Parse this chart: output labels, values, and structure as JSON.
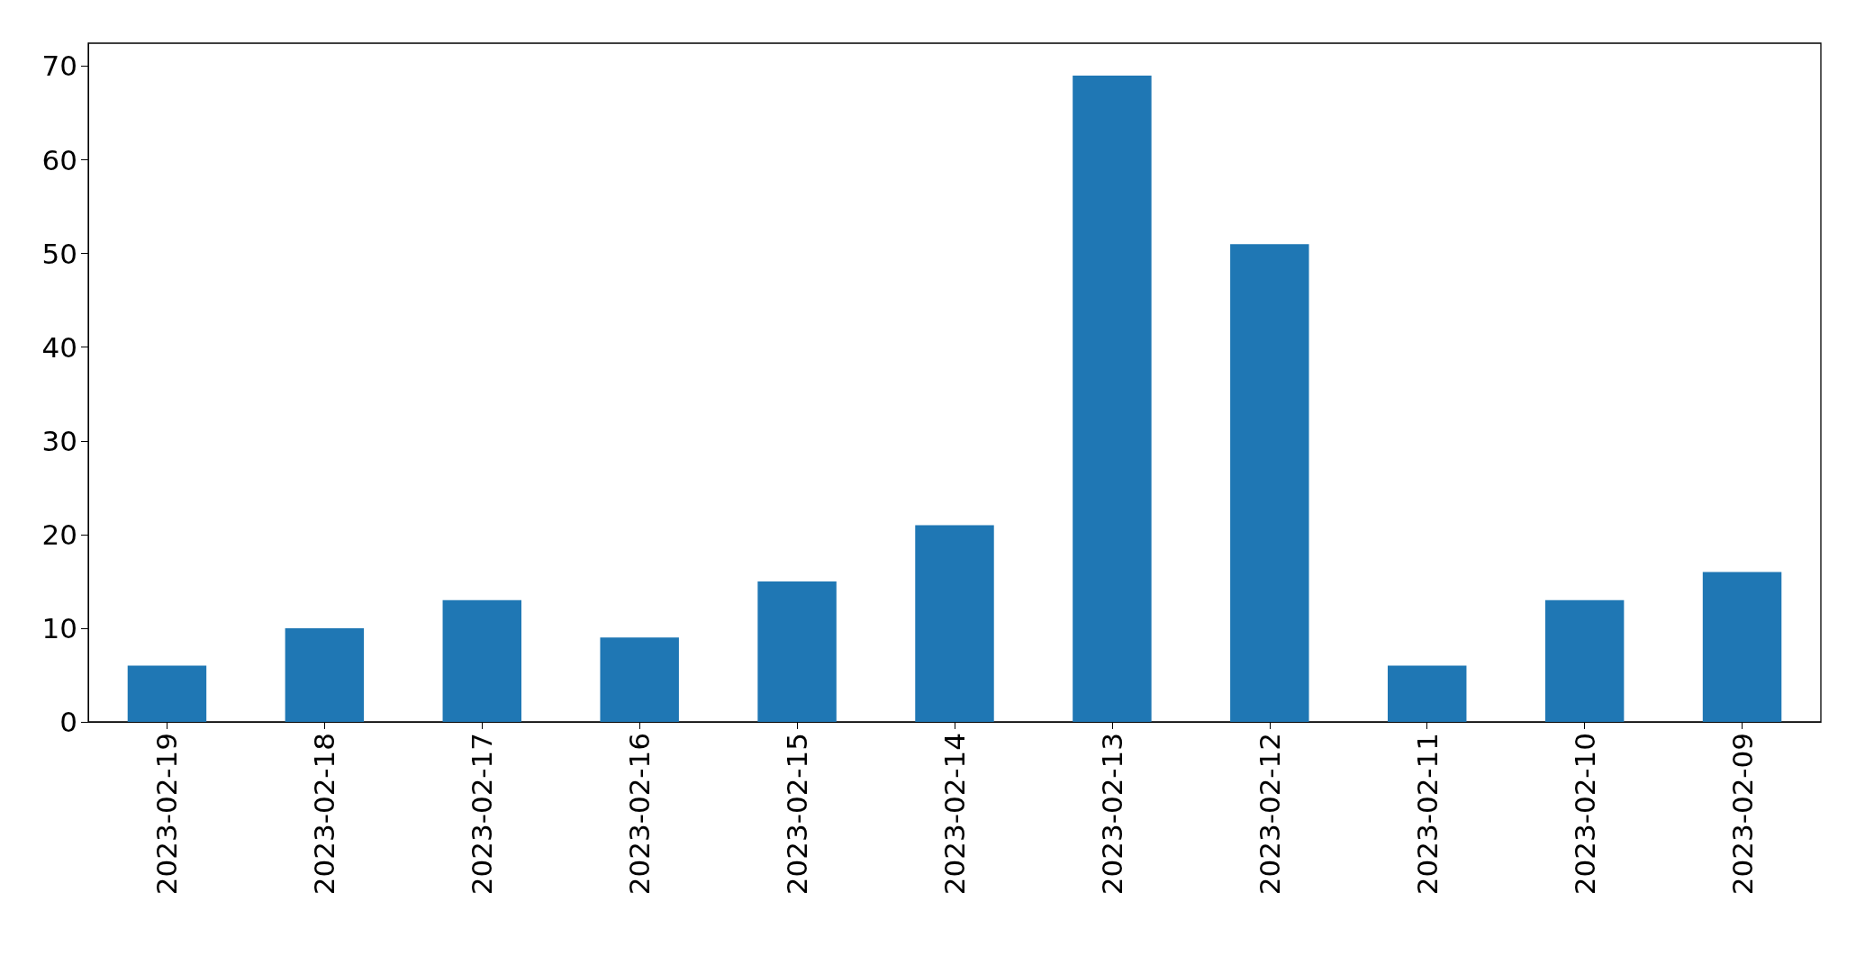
{
  "chart_data": {
    "type": "bar",
    "categories": [
      "2023-02-19",
      "2023-02-18",
      "2023-02-17",
      "2023-02-16",
      "2023-02-15",
      "2023-02-14",
      "2023-02-13",
      "2023-02-12",
      "2023-02-11",
      "2023-02-10",
      "2023-02-09"
    ],
    "values": [
      6,
      10,
      13,
      9,
      15,
      21,
      69,
      51,
      6,
      13,
      16
    ],
    "color": "#1f77b4",
    "ylim": [
      0,
      72.45
    ],
    "yticks": [
      0,
      10,
      20,
      30,
      40,
      50,
      60,
      70
    ],
    "grid": false
  }
}
